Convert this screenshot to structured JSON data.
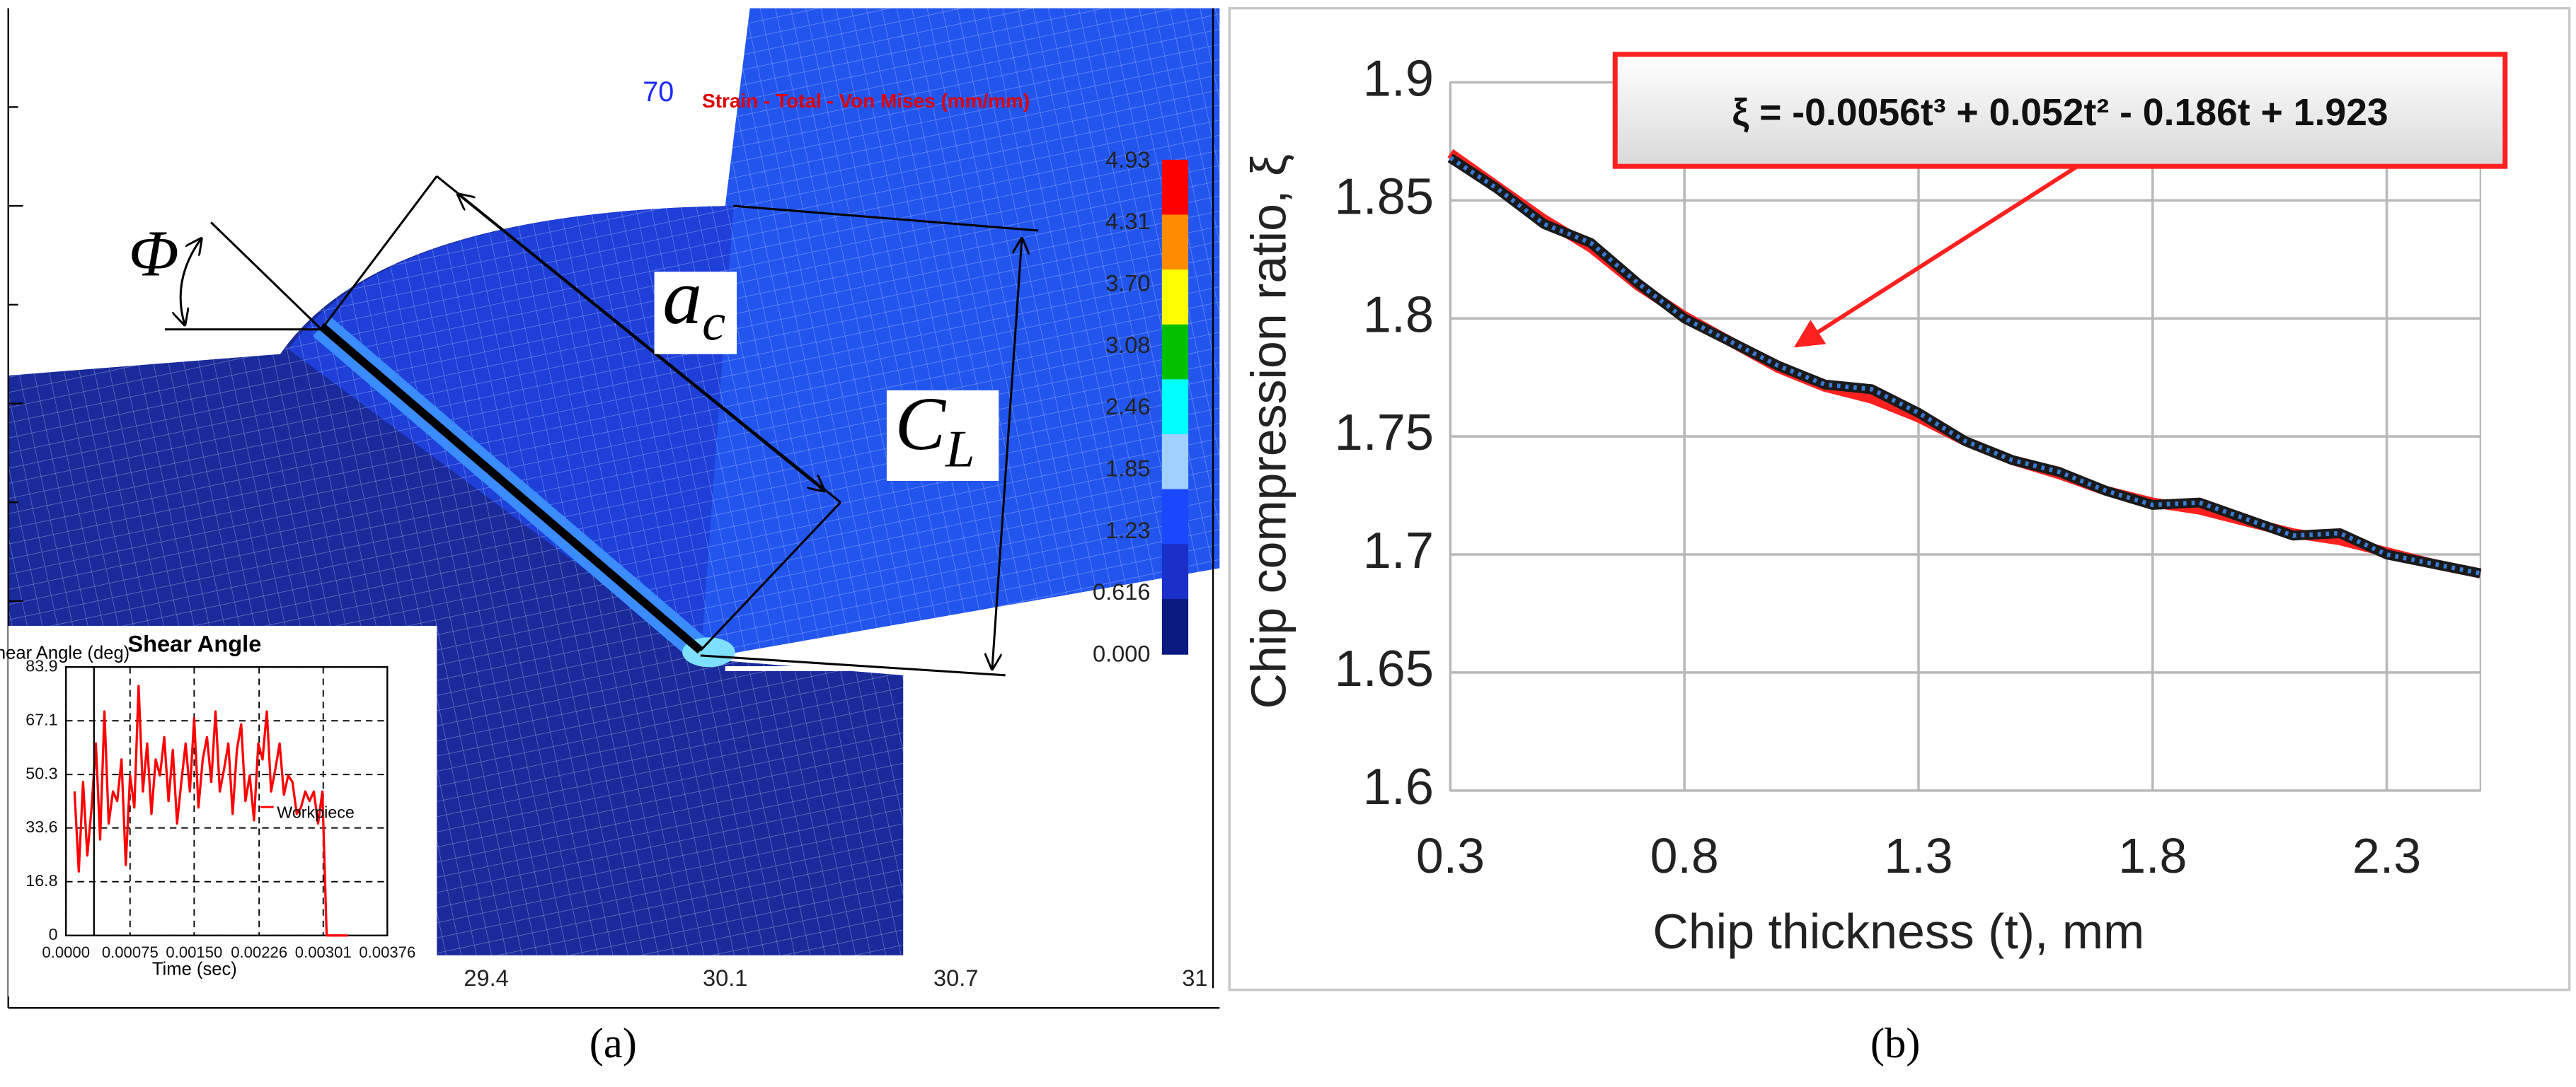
{
  "panel_a": {
    "frame_number": "70",
    "legend_title": "Strain - Total - Von Mises (mm/mm)",
    "colorbar_labels": [
      "4.93",
      "4.31",
      "3.70",
      "3.08",
      "2.46",
      "1.85",
      "1.23",
      "0.616",
      "0.000"
    ],
    "colorbar_colors": [
      "#ff0000",
      "#ff8c00",
      "#ffff00",
      "#00c000",
      "#00ffff",
      "#a0d0ff",
      "#1a48ff",
      "#1a30c8",
      "#0a1a80"
    ],
    "x_tick_labels": [
      "29.4",
      "30.1",
      "30.7",
      "31"
    ],
    "phi": "Φ",
    "ac": {
      "base": "a",
      "sub": "c"
    },
    "cl": {
      "base": "C",
      "sub": "L"
    },
    "caption": "(a)"
  },
  "panel_b": {
    "caption": "(b)"
  },
  "chart_data": [
    {
      "type": "line",
      "title": "Shear Angle",
      "x_label": "Time (sec)",
      "y_label": "Shear Angle (deg)",
      "annotation": "Workpiece",
      "grid": true,
      "xlim": [
        0,
        0.00376
      ],
      "ylim": [
        0,
        83.9
      ],
      "xticks": [
        {
          "value": 0,
          "label": "0.0000"
        },
        {
          "value": 0.00075,
          "label": "0.00075"
        },
        {
          "value": 0.0015,
          "label": "0.00150"
        },
        {
          "value": 0.00226,
          "label": "0.00226"
        },
        {
          "value": 0.00301,
          "label": "0.00301"
        },
        {
          "value": 0.00376,
          "label": "0.00376"
        }
      ],
      "yticks": [
        0,
        16.8,
        33.6,
        50.3,
        67.1,
        83.9
      ],
      "x": [
        0.0001,
        0.00015,
        0.0002,
        0.00025,
        0.0003,
        0.00035,
        0.0004,
        0.00045,
        0.0005,
        0.00055,
        0.0006,
        0.00065,
        0.0007,
        0.00075,
        0.0008,
        0.00085,
        0.0009,
        0.00095,
        0.001,
        0.00105,
        0.0011,
        0.00115,
        0.0012,
        0.00125,
        0.0013,
        0.00135,
        0.0014,
        0.00145,
        0.0015,
        0.00155,
        0.0016,
        0.00165,
        0.0017,
        0.00175,
        0.0018,
        0.00185,
        0.0019,
        0.00195,
        0.002,
        0.00205,
        0.0021,
        0.00215,
        0.0022,
        0.00225,
        0.0023,
        0.00235,
        0.0024,
        0.00245,
        0.0025,
        0.00255,
        0.0026,
        0.00265,
        0.0027,
        0.00275,
        0.0028,
        0.00285,
        0.0029,
        0.00295,
        0.003,
        0.00305,
        0.0031,
        0.0033
      ],
      "series": [
        {
          "color": "#ff0000",
          "values": [
            45,
            20,
            48,
            25,
            40,
            60,
            30,
            70,
            35,
            45,
            42,
            55,
            22,
            50,
            40,
            78,
            45,
            60,
            38,
            55,
            50,
            62,
            42,
            58,
            35,
            48,
            60,
            45,
            68,
            40,
            55,
            62,
            48,
            70,
            45,
            52,
            60,
            38,
            58,
            66,
            42,
            50,
            36,
            60,
            55,
            70,
            45,
            52,
            60,
            44,
            50,
            48,
            38,
            40,
            45,
            42,
            45,
            35,
            45,
            0,
            0,
            0
          ]
        }
      ]
    },
    {
      "type": "line",
      "x_label": "Chip thickness (t), mm",
      "y_label": "Chip compression ratio, ξ",
      "annotation": "ξ = -0.0056t³ + 0.052t² - 0.186t + 1.923",
      "grid": true,
      "xlim": [
        0.3,
        2.5
      ],
      "ylim": [
        1.6,
        1.9
      ],
      "xticks": [
        0.3,
        0.8,
        1.3,
        1.8,
        2.3
      ],
      "yticks": [
        1.6,
        1.65,
        1.7,
        1.75,
        1.8,
        1.85,
        1.9
      ],
      "x": [
        0.3,
        0.4,
        0.5,
        0.6,
        0.7,
        0.8,
        0.9,
        1.0,
        1.1,
        1.2,
        1.3,
        1.4,
        1.5,
        1.6,
        1.7,
        1.8,
        1.9,
        2.0,
        2.1,
        2.2,
        2.3,
        2.4,
        2.5
      ],
      "series": [
        {
          "color": "#ff2020",
          "values": [
            1.87,
            1.856,
            1.842,
            1.83,
            1.814,
            1.801,
            1.79,
            1.779,
            1.771,
            1.766,
            1.758,
            1.748,
            1.74,
            1.734,
            1.727,
            1.722,
            1.719,
            1.714,
            1.709,
            1.706,
            1.701,
            1.696,
            1.692
          ]
        },
        {
          "color": "#1a1a1a",
          "dot_color": "#3a7bd5",
          "values": [
            1.868,
            1.855,
            1.84,
            1.832,
            1.815,
            1.8,
            1.79,
            1.78,
            1.772,
            1.77,
            1.76,
            1.748,
            1.74,
            1.735,
            1.727,
            1.721,
            1.722,
            1.715,
            1.708,
            1.709,
            1.7,
            1.696,
            1.692
          ]
        }
      ]
    }
  ]
}
